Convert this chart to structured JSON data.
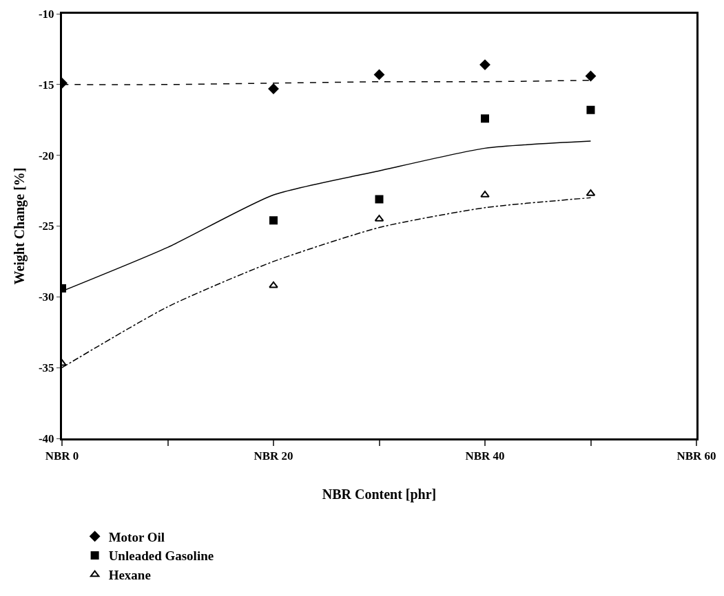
{
  "chart_data": {
    "type": "scatter",
    "xlabel": "NBR Content [phr]",
    "ylabel": "Weight Change [%]",
    "categories": [
      "NBR 0",
      null,
      "NBR 20",
      null,
      "NBR 40",
      null,
      "NBR 60"
    ],
    "ylim": [
      -40,
      -10
    ],
    "yticks": [
      -10,
      -15,
      -20,
      -25,
      -30,
      -35,
      -40
    ],
    "legend": "bottom",
    "series": [
      {
        "name": "Motor Oil",
        "color": "#000000",
        "marker": "diamond",
        "values": [
          -14.9,
          null,
          -15.3,
          -14.3,
          -13.6,
          -14.4,
          null
        ]
      },
      {
        "name": "Unleaded Gasoline",
        "color": "#000000",
        "marker": "square",
        "values": [
          -29.4,
          null,
          -24.6,
          -23.1,
          -17.4,
          -16.8,
          null
        ]
      },
      {
        "name": "Hexane",
        "color": "#000000",
        "marker": "triangle",
        "values": [
          -34.7,
          null,
          -29.2,
          -24.5,
          -22.8,
          -22.7,
          null
        ]
      },
      {
        "type": "line",
        "color": "#000000",
        "line_style": "dashed",
        "values": [
          -15.0,
          -15.0,
          -14.9,
          -14.8,
          -14.8,
          -14.7,
          null
        ]
      },
      {
        "type": "line",
        "color": "#000000",
        "line_style": "solid",
        "values": [
          -29.6,
          -26.5,
          -22.8,
          -21.1,
          -19.5,
          -19.0,
          null
        ]
      },
      {
        "type": "line",
        "color": "#000000",
        "line_style": "dashdot",
        "values": [
          -35.0,
          -30.7,
          -27.5,
          -25.1,
          -23.7,
          -23.0,
          null
        ]
      }
    ]
  }
}
